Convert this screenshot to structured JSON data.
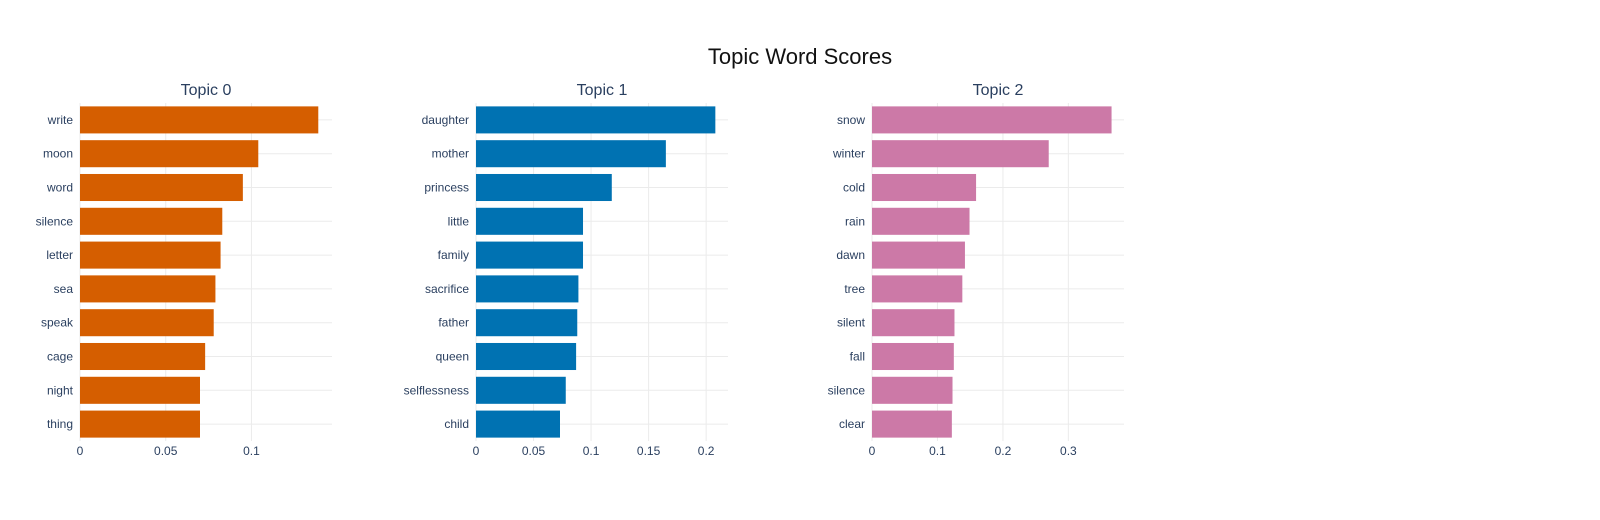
{
  "title": "Topic Word Scores",
  "chart_data": [
    {
      "type": "bar",
      "orientation": "horizontal",
      "title": "Topic 0",
      "color": "#D55E00",
      "categories": [
        "write",
        "moon",
        "word",
        "silence",
        "letter",
        "sea",
        "speak",
        "cage",
        "night",
        "thing"
      ],
      "values": [
        0.139,
        0.104,
        0.095,
        0.083,
        0.082,
        0.079,
        0.078,
        0.073,
        0.07,
        0.07
      ],
      "xlim": [
        0,
        0.147
      ],
      "xticks": [
        0,
        0.05,
        0.1
      ],
      "xtick_labels": [
        "0",
        "0.05",
        "0.1"
      ],
      "grid": true
    },
    {
      "type": "bar",
      "orientation": "horizontal",
      "title": "Topic 1",
      "color": "#0072B2",
      "categories": [
        "daughter",
        "mother",
        "princess",
        "little",
        "family",
        "sacrifice",
        "father",
        "queen",
        "selflessness",
        "child"
      ],
      "values": [
        0.208,
        0.165,
        0.118,
        0.093,
        0.093,
        0.089,
        0.088,
        0.087,
        0.078,
        0.073
      ],
      "xlim": [
        0,
        0.219
      ],
      "xticks": [
        0,
        0.05,
        0.1,
        0.15,
        0.2
      ],
      "xtick_labels": [
        "0",
        "0.05",
        "0.1",
        "0.15",
        "0.2"
      ],
      "grid": true
    },
    {
      "type": "bar",
      "orientation": "horizontal",
      "title": "Topic 2",
      "color": "#CC79A7",
      "categories": [
        "snow",
        "winter",
        "cold",
        "rain",
        "dawn",
        "tree",
        "silent",
        "fall",
        "silence",
        "clear"
      ],
      "values": [
        0.366,
        0.27,
        0.159,
        0.149,
        0.142,
        0.138,
        0.126,
        0.125,
        0.123,
        0.122
      ],
      "xlim": [
        0,
        0.385
      ],
      "xticks": [
        0,
        0.1,
        0.2,
        0.3
      ],
      "xtick_labels": [
        "0",
        "0.1",
        "0.2",
        "0.3"
      ],
      "grid": true
    }
  ]
}
